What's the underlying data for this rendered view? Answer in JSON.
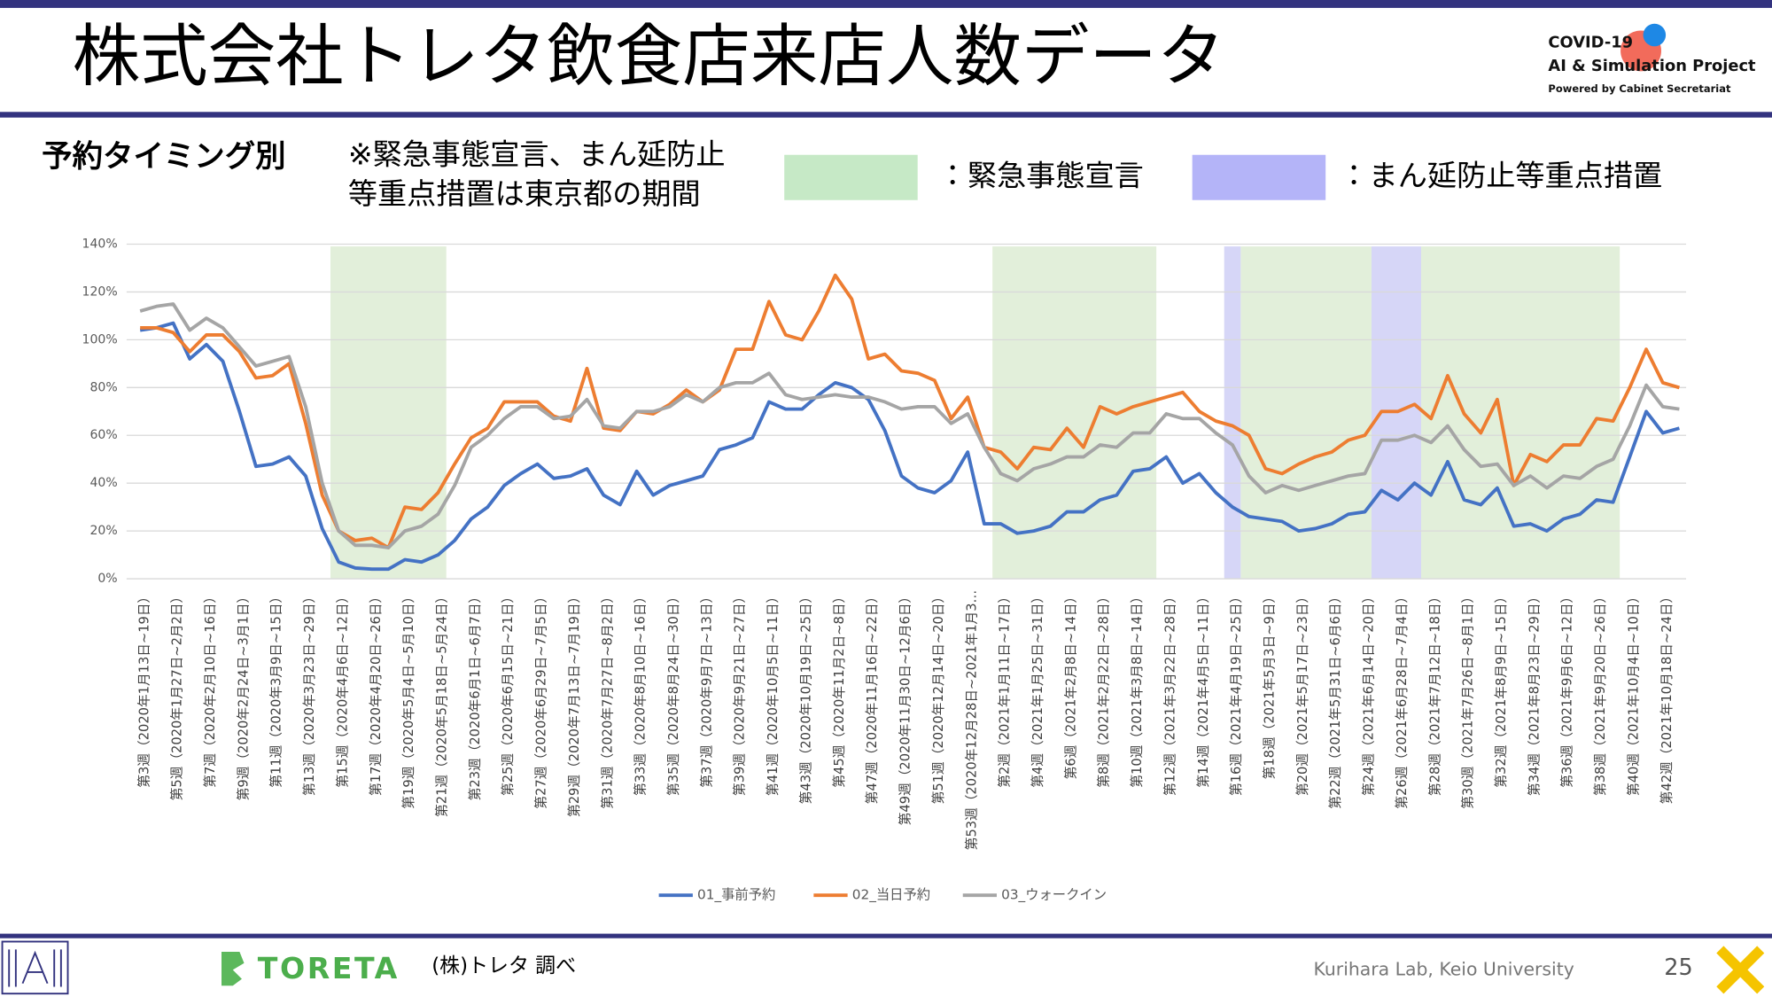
{
  "header": {
    "title": "株式会社トレタ飲食店来店人数データ",
    "logo": {
      "line1": "COVID-19",
      "line2": "AI & Simulation Project",
      "line3": "Powered by Cabinet Secretariat"
    }
  },
  "chart_data": {
    "type": "line",
    "subtitle": "予約タイミング別",
    "note": [
      "※緊急事態宣言、まん延防止",
      "等重点措置は東京都の期間"
    ],
    "band_legend": [
      {
        "label": "：緊急事態宣言",
        "color": "#c6e9c6"
      },
      {
        "label": "：まん延防止等重点措置",
        "color": "#b4b4f8"
      }
    ],
    "bands": [
      {
        "color": "#e2efda",
        "from": 11.5,
        "to": 18.5
      },
      {
        "color": "#e2efda",
        "from": 51.5,
        "to": 61.4
      },
      {
        "color": "#d6d6f7",
        "from": 65.5,
        "to": 66.5
      },
      {
        "color": "#e2efda",
        "from": 66.5,
        "to": 74.4
      },
      {
        "color": "#d6d6f7",
        "from": 74.4,
        "to": 77.4
      },
      {
        "color": "#e2efda",
        "from": 77.4,
        "to": 89.4
      }
    ],
    "categories": [
      "第3週（2020年1月13日~19日）",
      null,
      "第5週（2020年1月27日~2月2日）",
      null,
      "第7週（2020年2月10日~16日）",
      null,
      "第9週（2020年2月24日~3月1日）",
      null,
      "第11週（2020年3月9日~15日）",
      null,
      "第13週（2020年3月23日~29日）",
      null,
      "第15週（2020年4月6日~12日）",
      null,
      "第17週（2020年4月20日~26日）",
      null,
      "第19週（2020年5月4日~5月10日）",
      null,
      "第21週（2020年5月18日~5月24日）",
      null,
      "第23週（2020年6月1日~6月7日）",
      null,
      "第25週（2020年6月15日~21日）",
      null,
      "第27週（2020年6月29日~7月5日）",
      null,
      "第29週（2020年7月13日~7月19日）",
      null,
      "第31週（2020年7月27日~8月2日）",
      null,
      "第33週（2020年8月10日~16日）",
      null,
      "第35週（2020年8月24日~30日）",
      null,
      "第37週（2020年9月7日~13日）",
      null,
      "第39週（2020年9月21日~27日）",
      null,
      "第41週（2020年10月5日~11日）",
      null,
      "第43週（2020年10月19日~25日）",
      null,
      "第45週（2020年11月2日~8日）",
      null,
      "第47週（2020年11月16日~22日）",
      null,
      "第49週（2020年11月30日~12月6日）",
      null,
      "第51週（2020年12月14日~20日）",
      null,
      "第53週（2020年12月28日~2021年1月3…",
      null,
      "第2週（2021年1月11日~17日）",
      null,
      "第4週（2021年1月25日~31日）",
      null,
      "第6週（2021年2月8日~14日）",
      null,
      "第8週（2021年2月22日~28日）",
      null,
      "第10週（2021年3月8日~14日）",
      null,
      "第12週（2021年3月22日~28日）",
      null,
      "第14週（2021年4月5日~11日）",
      null,
      "第16週（2021年4月19日~25日）",
      null,
      "第18週（2021年5月3日~9日）",
      null,
      "第20週（2021年5月17日~23日）",
      null,
      "第22週（2021年5月31日~6月6日）",
      null,
      "第24週（2021年6月14日~20日）",
      null,
      "第26週（2021年6月28日~7月4日）",
      null,
      "第28週（2021年7月12日~18日）",
      null,
      "第30週（2021年7月26日~8月1日）",
      null,
      "第32週（2021年8月9日~15日）",
      null,
      "第34週（2021年8月23日~29日）",
      null,
      "第36週（2021年9月6日~12日）",
      null,
      "第38週（2021年9月20日~26日）",
      null,
      "第40週（2021年10月4日~10日）",
      null,
      "第42週（2021年10月18日~24日）",
      null
    ],
    "series": [
      {
        "name": "01_事前予約",
        "color": "#4472c4",
        "values": [
          104,
          105,
          107,
          92,
          98,
          91,
          70,
          47,
          48,
          51,
          43,
          21,
          7,
          4.5,
          4,
          4,
          8,
          7,
          10,
          16,
          25,
          30,
          39,
          44,
          48,
          42,
          43,
          46,
          35,
          31,
          45,
          35,
          39,
          41,
          43,
          54,
          56,
          59,
          74,
          71,
          71,
          77,
          82,
          80,
          75,
          62,
          43,
          38,
          36,
          41,
          53,
          23,
          23,
          19,
          20,
          22,
          28,
          28,
          33,
          35,
          45,
          46,
          51,
          40,
          44,
          36,
          30,
          26,
          25,
          24,
          20,
          21,
          23,
          27,
          28,
          37,
          33,
          40,
          35,
          49,
          33,
          31,
          38,
          22,
          23,
          20,
          25,
          27,
          33,
          32,
          51,
          70,
          61,
          63
        ]
      },
      {
        "name": "02_当日予約",
        "color": "#ed7d31",
        "values": [
          105,
          105,
          103,
          95,
          102,
          102,
          95,
          84,
          85,
          90,
          65,
          35,
          20,
          16,
          17,
          13,
          30,
          29,
          36,
          48,
          59,
          63,
          74,
          74,
          74,
          68,
          66,
          88,
          63,
          62,
          70,
          69,
          73,
          79,
          74,
          79,
          96,
          96,
          116,
          102,
          100,
          112,
          127,
          117,
          92,
          94,
          87,
          86,
          83,
          67,
          76,
          55,
          53,
          46,
          55,
          54,
          63,
          55,
          72,
          69,
          72,
          74,
          76,
          78,
          70,
          66,
          64,
          60,
          46,
          44,
          48,
          51,
          53,
          58,
          60,
          70,
          70,
          73,
          67,
          85,
          69,
          61,
          75,
          39,
          52,
          49,
          56,
          56,
          67,
          66,
          80,
          96,
          82,
          80
        ]
      },
      {
        "name": "03_ウォークイン",
        "color": "#a5a5a5",
        "values": [
          112,
          114,
          115,
          104,
          109,
          105,
          97,
          89,
          91,
          93,
          72,
          40,
          20,
          14,
          14,
          13,
          20,
          22,
          27,
          39,
          55,
          60,
          67,
          72,
          72,
          67,
          68,
          75,
          64,
          63,
          70,
          70,
          72,
          77,
          74,
          80,
          82,
          82,
          86,
          77,
          75,
          76,
          77,
          76,
          76,
          74,
          71,
          72,
          72,
          65,
          69,
          55,
          44,
          41,
          46,
          48,
          51,
          51,
          56,
          55,
          61,
          61,
          69,
          67,
          67,
          61,
          56,
          43,
          36,
          39,
          37,
          39,
          41,
          43,
          44,
          58,
          58,
          60,
          57,
          64,
          54,
          47,
          48,
          39,
          43,
          38,
          43,
          42,
          47,
          50,
          64,
          81,
          72,
          71
        ]
      }
    ],
    "ylim": [
      0,
      140
    ],
    "yticks": [
      {
        "value": 0,
        "label": "0%"
      },
      {
        "value": 20,
        "label": "20%"
      },
      {
        "value": 40,
        "label": "40%"
      },
      {
        "value": 60,
        "label": "60%"
      },
      {
        "value": 80,
        "label": "80%"
      },
      {
        "value": 100,
        "label": "100%"
      },
      {
        "value": 120,
        "label": "120%"
      },
      {
        "value": 140,
        "label": "140%"
      }
    ],
    "grid": true,
    "legend": "bottom"
  },
  "footer": {
    "brand": "TORETA",
    "source": "(株)トレタ 調べ",
    "lab": "Kurihara Lab, Keio University",
    "page": "25"
  }
}
